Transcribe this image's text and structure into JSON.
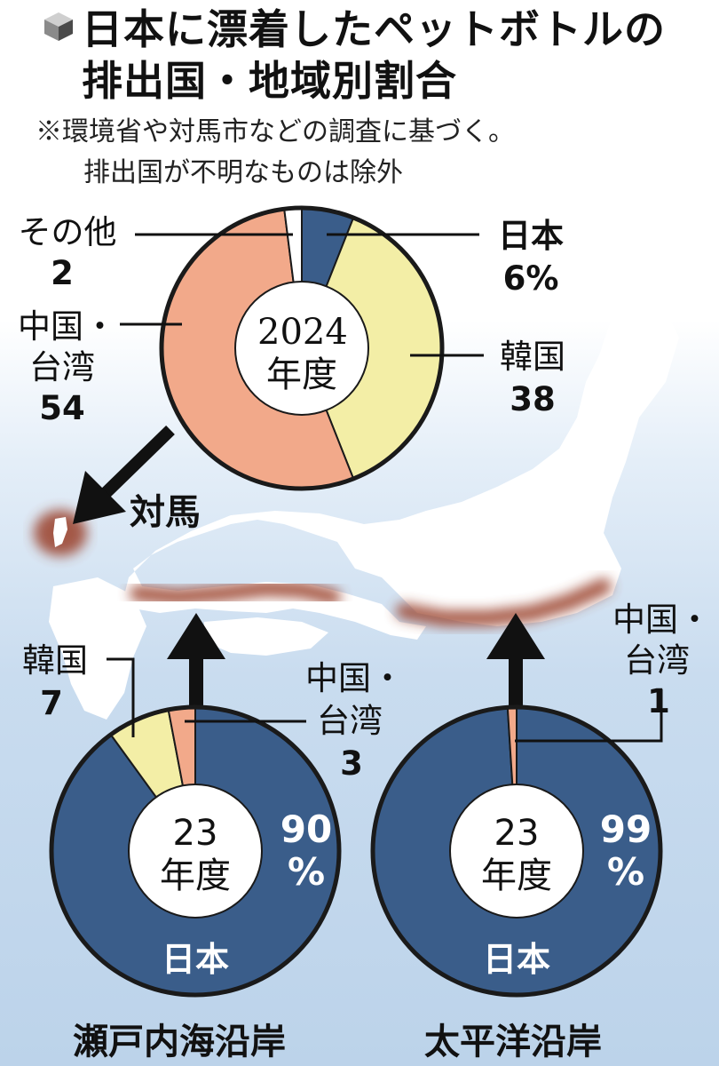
{
  "title": {
    "line1": "日本に漂着したペットボトルの",
    "line2": "排出国・地域別割合"
  },
  "note": {
    "line1": "※環境省や対馬市などの調査に基づく。",
    "line2": "排出国が不明なものは除外"
  },
  "colors": {
    "japan": "#3a5d8a",
    "korea": "#f3eea6",
    "china_taiwan": "#f2a98a",
    "other": "#ffffff",
    "land": "#ffffff",
    "coast": "#9e4a35",
    "sea": "#c9dcef"
  },
  "map": {
    "tsushima_label": "対馬"
  },
  "chart_data": [
    {
      "type": "pie",
      "location": "対馬",
      "center_label": [
        "2024",
        "年度"
      ],
      "unit": "%",
      "slices": [
        {
          "name": "日本",
          "value": 6,
          "label_value": "6%",
          "color": "#3a5d8a"
        },
        {
          "name": "韓国",
          "value": 38,
          "label_value": "38",
          "color": "#f3eea6"
        },
        {
          "name": "中国・台湾",
          "label_lines": [
            "中国・",
            "台湾"
          ],
          "value": 54,
          "label_value": "54",
          "color": "#f2a98a"
        },
        {
          "name": "その他",
          "value": 2,
          "label_value": "2",
          "color": "#ffffff"
        }
      ]
    },
    {
      "type": "pie",
      "location": "瀬戸内海沿岸",
      "center_label": [
        "23",
        "年度"
      ],
      "unit": "%",
      "slices": [
        {
          "name": "日本",
          "value": 90,
          "label_value": "90",
          "color": "#3a5d8a"
        },
        {
          "name": "韓国",
          "value": 7,
          "label_value": "7",
          "color": "#f3eea6"
        },
        {
          "name": "中国・台湾",
          "label_lines": [
            "中国・",
            "台湾"
          ],
          "value": 3,
          "label_value": "3",
          "color": "#f2a98a"
        }
      ]
    },
    {
      "type": "pie",
      "location": "太平洋沿岸",
      "center_label": [
        "23",
        "年度"
      ],
      "unit": "%",
      "slices": [
        {
          "name": "日本",
          "value": 99,
          "label_value": "99",
          "color": "#3a5d8a"
        },
        {
          "name": "中国・台湾",
          "label_lines": [
            "中国・",
            "台湾"
          ],
          "value": 1,
          "label_value": "1",
          "color": "#f2a98a"
        }
      ]
    }
  ]
}
